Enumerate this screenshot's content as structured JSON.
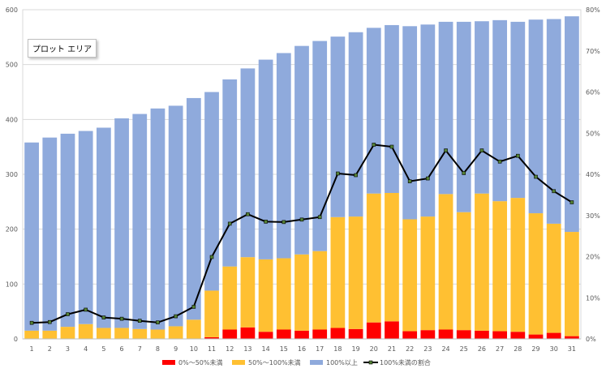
{
  "tooltip": "プロット エリア",
  "chart_data": {
    "type": "bar",
    "stacked": true,
    "categories": [
      "1",
      "2",
      "3",
      "4",
      "5",
      "6",
      "7",
      "8",
      "9",
      "10",
      "11",
      "12",
      "13",
      "14",
      "15",
      "16",
      "17",
      "18",
      "19",
      "20",
      "21",
      "22",
      "23",
      "24",
      "25",
      "26",
      "27",
      "28",
      "29",
      "30",
      "31"
    ],
    "series": [
      {
        "name": "0%～50%未満",
        "type": "bar",
        "color": "#ff0000",
        "values": [
          0,
          0,
          0,
          0,
          0,
          0,
          0,
          0,
          0,
          0,
          3,
          17,
          21,
          13,
          17,
          15,
          17,
          20,
          18,
          30,
          32,
          14,
          16,
          17,
          16,
          15,
          14,
          13,
          8,
          11,
          5
        ]
      },
      {
        "name": "50%～100%未満",
        "type": "bar",
        "color": "#ffc032",
        "values": [
          15,
          15,
          22,
          27,
          20,
          20,
          18,
          17,
          23,
          35,
          85,
          115,
          128,
          132,
          130,
          139,
          143,
          202,
          205,
          235,
          234,
          204,
          207,
          247,
          215,
          250,
          237,
          244,
          221,
          199,
          190
        ]
      },
      {
        "name": "100%以上",
        "type": "bar",
        "color": "#8faadc",
        "values": [
          343,
          352,
          352,
          352,
          365,
          382,
          392,
          403,
          402,
          404,
          362,
          341,
          344,
          364,
          374,
          380,
          383,
          329,
          336,
          302,
          306,
          352,
          350,
          314,
          347,
          314,
          330,
          321,
          353,
          373,
          393
        ]
      },
      {
        "name": "100%未満の割合",
        "type": "line",
        "axis": "right",
        "color": "#000000",
        "marker_color": "#548235",
        "values": [
          3.9,
          4.1,
          6.0,
          7.1,
          5.2,
          4.9,
          4.4,
          4.0,
          5.5,
          7.8,
          19.9,
          28.0,
          30.3,
          28.5,
          28.4,
          29.0,
          29.6,
          40.2,
          39.8,
          47.2,
          46.7,
          38.3,
          39.0,
          45.8,
          40.3,
          45.8,
          43.1,
          44.5,
          39.4,
          35.9,
          33.2
        ]
      }
    ],
    "y_left": {
      "min": 0,
      "max": 600,
      "step": 100,
      "ticks": [
        "0",
        "100",
        "200",
        "300",
        "400",
        "500",
        "600"
      ]
    },
    "y_right": {
      "min": 0,
      "max": 80,
      "step": 10,
      "ticks": [
        "0%",
        "10%",
        "20%",
        "30%",
        "40%",
        "50%",
        "60%",
        "70%",
        "80%"
      ]
    },
    "grid": true,
    "legend_position": "bottom"
  }
}
